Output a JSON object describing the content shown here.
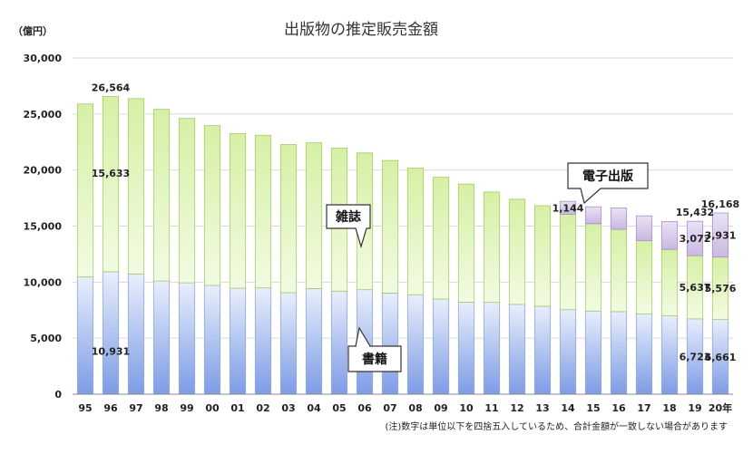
{
  "chart_data": {
    "type": "bar",
    "stacked": true,
    "title": "出版物の推定販売金額",
    "ylabel": "（億円）",
    "ylim": [
      0,
      30000
    ],
    "yticks": [
      "0",
      "5,000",
      "10,000",
      "15,000",
      "20,000",
      "25,000",
      "30,000"
    ],
    "grid": true,
    "categories": [
      "95",
      "96",
      "97",
      "98",
      "99",
      "00",
      "01",
      "02",
      "03",
      "04",
      "05",
      "06",
      "07",
      "08",
      "09",
      "10",
      "11",
      "12",
      "13",
      "14",
      "15",
      "16",
      "17",
      "18",
      "19",
      "20年"
    ],
    "series": [
      {
        "name": "書籍",
        "color_top": "#e8eefb",
        "color_bottom": "#7d9ce6",
        "values": [
          10470,
          10931,
          10730,
          10100,
          9936,
          9706,
          9456,
          9490,
          9056,
          9429,
          9197,
          9326,
          9026,
          8878,
          8492,
          8213,
          8199,
          8013,
          7851,
          7544,
          7419,
          7370,
          7152,
          6991,
          6723,
          6661
        ]
      },
      {
        "name": "雑誌",
        "color_top": "#d6f0a5",
        "color_bottom": "#f2fbe2",
        "values": [
          15427,
          15633,
          15644,
          15315,
          14672,
          14261,
          13794,
          13616,
          13222,
          12998,
          12767,
          12200,
          11827,
          11299,
          10864,
          10536,
          9844,
          9385,
          8972,
          8520,
          7801,
          7339,
          6548,
          5930,
          5637,
          5576
        ]
      },
      {
        "name": "電子出版",
        "color_top": "#e9e2f3",
        "color_bottom": "#c9b8e3",
        "values": [
          0,
          0,
          0,
          0,
          0,
          0,
          0,
          0,
          0,
          0,
          0,
          0,
          0,
          0,
          0,
          0,
          0,
          0,
          0,
          1144,
          1502,
          1909,
          2215,
          2479,
          3072,
          3931
        ]
      }
    ],
    "data_labels": [
      {
        "category": "96",
        "series": "書籍",
        "text": "10,931"
      },
      {
        "category": "96",
        "series": "雑誌",
        "text": "15,633"
      },
      {
        "category": "96",
        "series": "total",
        "text": "26,564"
      },
      {
        "category": "14",
        "series": "電子出版",
        "text": "1,144"
      },
      {
        "category": "19",
        "series": "書籍",
        "text": "6,723"
      },
      {
        "category": "19",
        "series": "雑誌",
        "text": "5,637"
      },
      {
        "category": "19",
        "series": "電子出版",
        "text": "3,072"
      },
      {
        "category": "19",
        "series": "total",
        "text": "15,432"
      },
      {
        "category": "20年",
        "series": "書籍",
        "text": "6,661"
      },
      {
        "category": "20年",
        "series": "雑誌",
        "text": "5,576"
      },
      {
        "category": "20年",
        "series": "電子出版",
        "text": "3,931"
      },
      {
        "category": "20年",
        "series": "total",
        "text": "16,168"
      }
    ],
    "callouts": [
      {
        "text": "電子出版",
        "category": "15"
      },
      {
        "text": "雑誌",
        "category": "06"
      },
      {
        "text": "書籍",
        "category": "06"
      }
    ],
    "note": "(注)数字は単位以下を四捨五入しているため、合計金額が一致しない場合があります"
  }
}
